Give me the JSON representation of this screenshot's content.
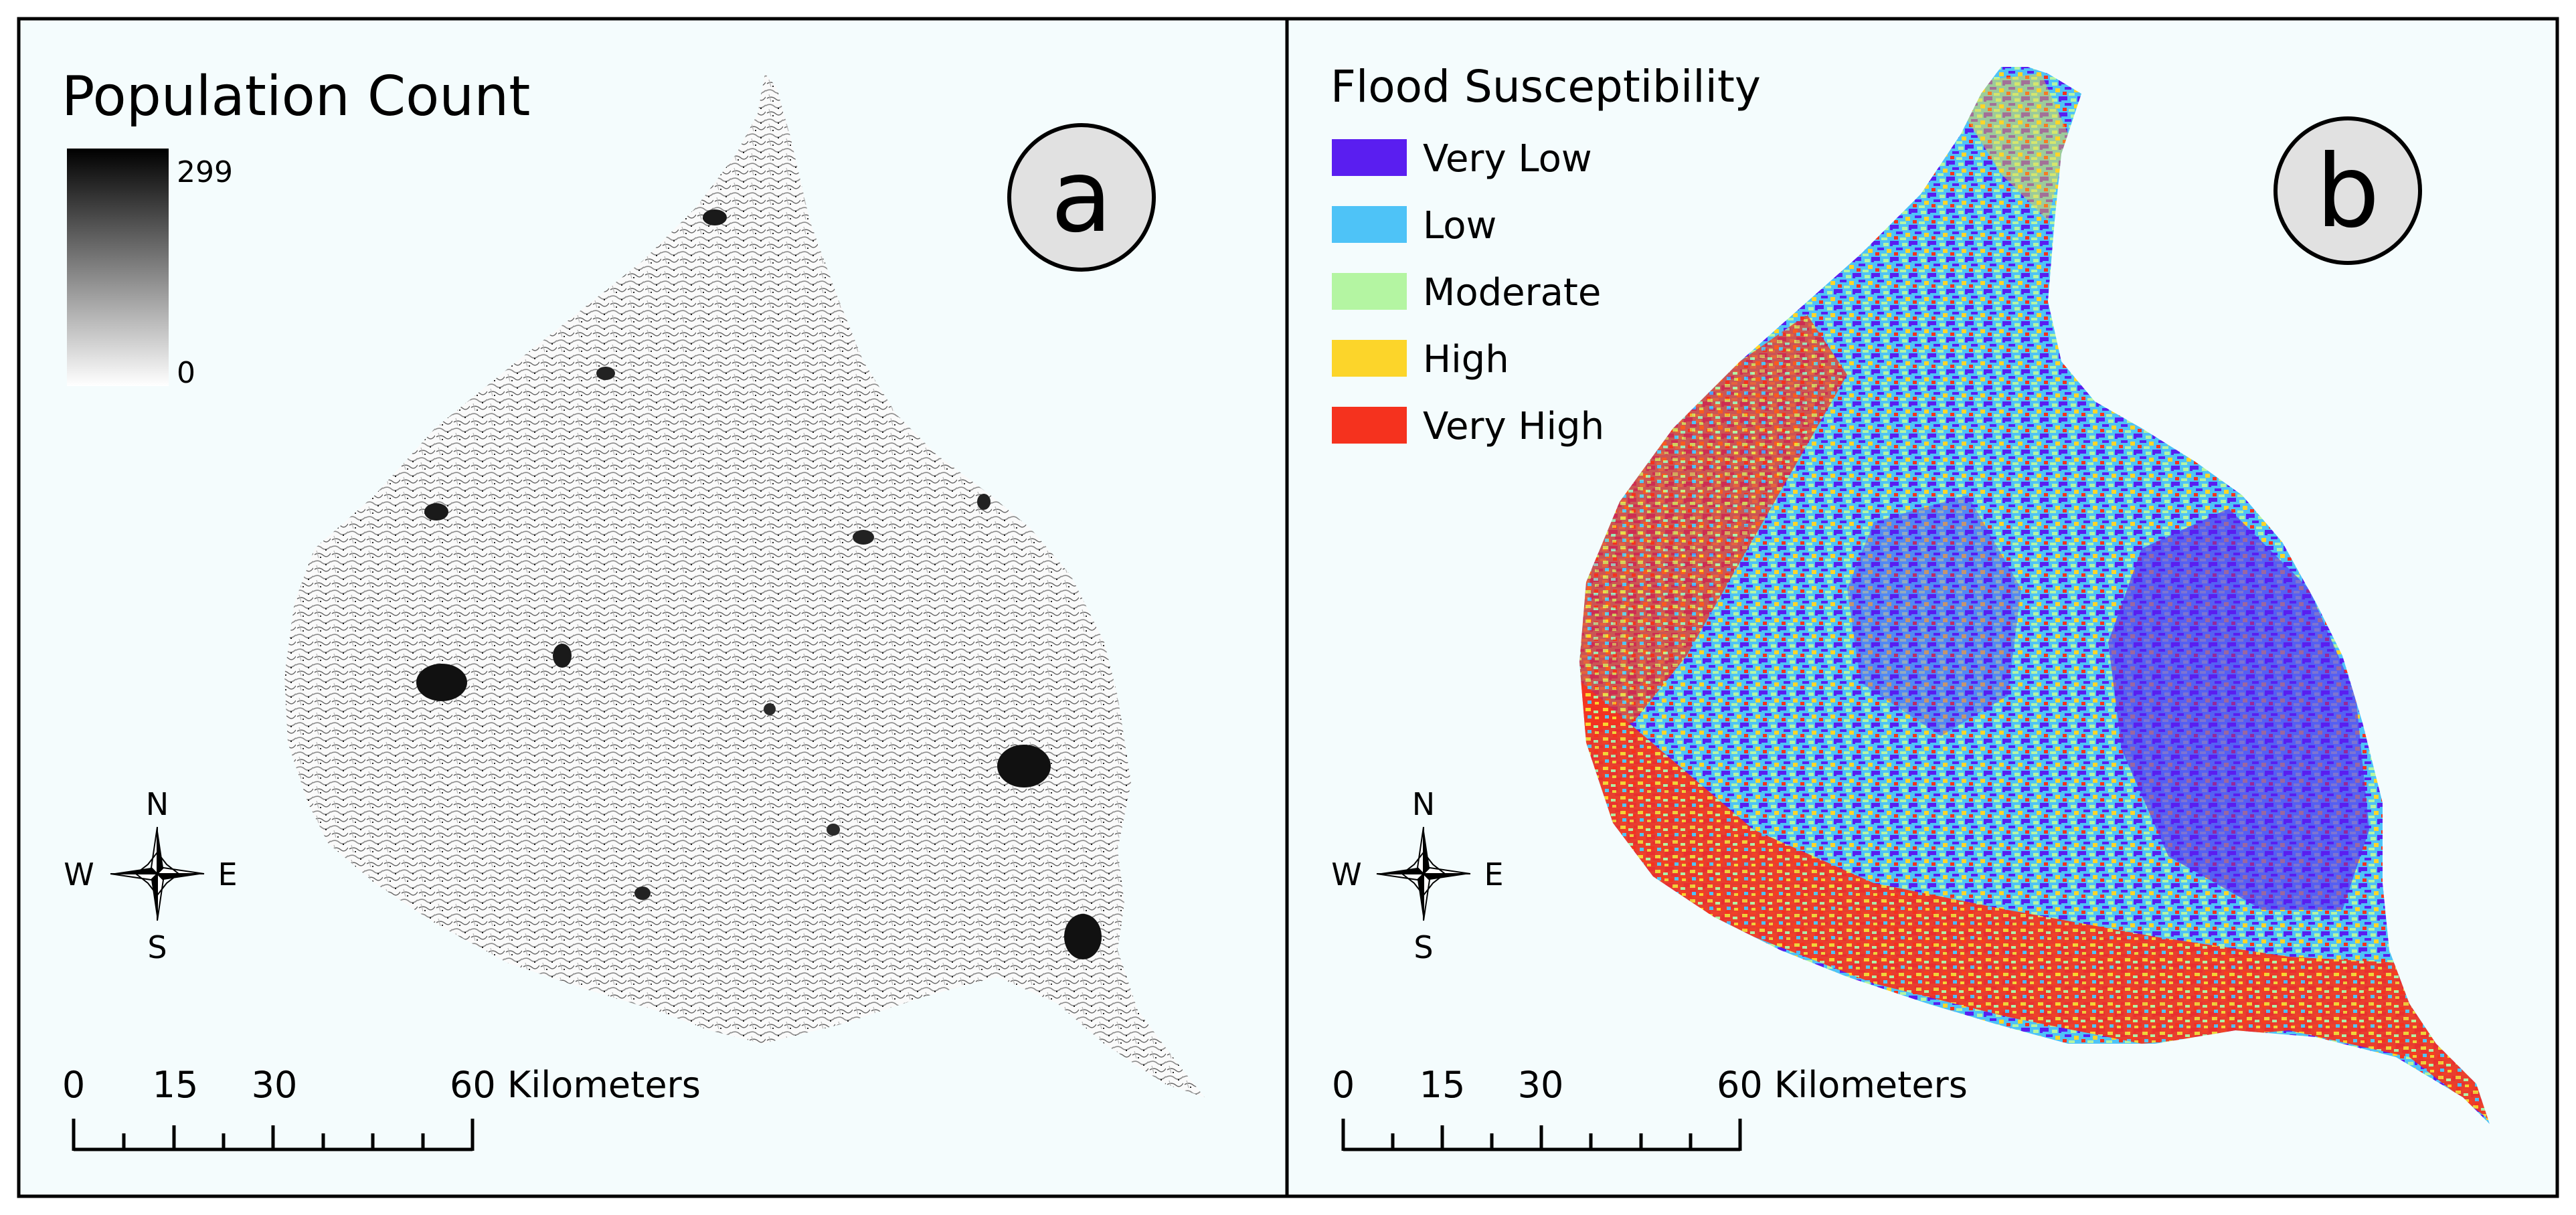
{
  "panel_a": {
    "legend_title": "Population Count",
    "ramp_max_label": "299",
    "ramp_min_label": "0",
    "panel_letter": "a",
    "compass": {
      "n": "N",
      "s": "S",
      "e": "E",
      "w": "W"
    },
    "scalebar": {
      "ticks": [
        "0",
        "15",
        "30",
        "60 Kilometers"
      ]
    }
  },
  "panel_b": {
    "legend_title": "Flood Susceptibility",
    "legend_items": [
      {
        "label": "Very Low",
        "color": "#5a1ef0"
      },
      {
        "label": "Low",
        "color": "#4ec3f7"
      },
      {
        "label": "Moderate",
        "color": "#b4f5a2"
      },
      {
        "label": "High",
        "color": "#fcd52a"
      },
      {
        "label": "Very High",
        "color": "#f5321e"
      }
    ],
    "panel_letter": "b",
    "compass": {
      "n": "N",
      "s": "S",
      "e": "E",
      "w": "W"
    },
    "scalebar": {
      "ticks": [
        "0",
        "15",
        "30",
        "60 Kilometers"
      ]
    }
  },
  "colors": {
    "map_background": "#f4fcfd",
    "frame": "#000000",
    "badge_fill": "#e1e1e1"
  }
}
